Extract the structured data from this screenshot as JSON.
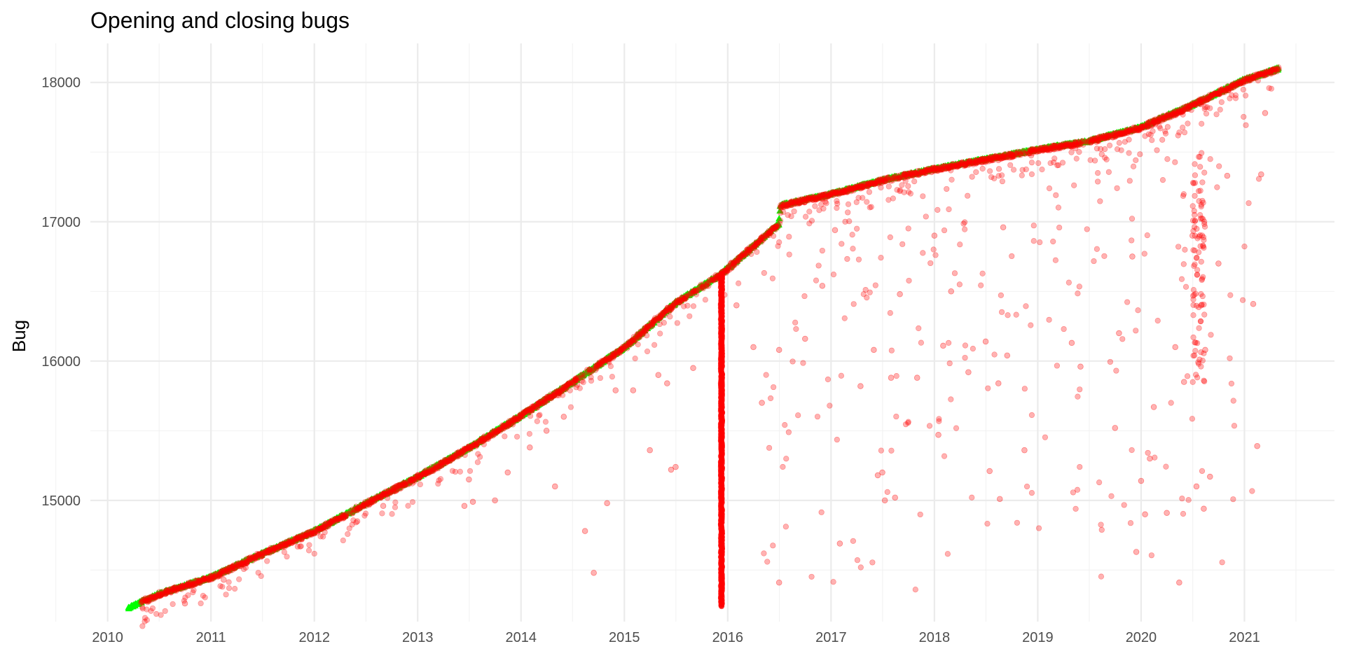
{
  "chart_data": {
    "type": "scatter",
    "title": "Opening and closing bugs",
    "xlabel": "",
    "ylabel": "Bug",
    "x_axis_type": "date",
    "xlim": [
      "2009-11-01",
      "2021-11-15"
    ],
    "ylim": [
      14130,
      18280
    ],
    "x_ticks": [
      "2010",
      "2011",
      "2012",
      "2013",
      "2014",
      "2015",
      "2016",
      "2017",
      "2018",
      "2019",
      "2020",
      "2021"
    ],
    "y_ticks": [
      15000,
      16000,
      17000,
      18000
    ],
    "y_minor_ticks": [
      14500,
      15500,
      16500,
      17500
    ],
    "grid": true,
    "legend": "none",
    "series": [
      {
        "role": "opened",
        "color": "#00ff00",
        "marker": "triangle",
        "trend": [
          [
            "2010-03-15",
            14230
          ],
          [
            "2010-07-01",
            14330
          ],
          [
            "2011-01-01",
            14450
          ],
          [
            "2011-07-01",
            14620
          ],
          [
            "2012-01-01",
            14780
          ],
          [
            "2012-07-01",
            14980
          ],
          [
            "2013-01-01",
            15170
          ],
          [
            "2013-07-01",
            15380
          ],
          [
            "2014-01-01",
            15610
          ],
          [
            "2014-07-01",
            15850
          ],
          [
            "2015-01-01",
            16100
          ],
          [
            "2015-07-01",
            16420
          ],
          [
            "2015-12-10",
            16630
          ],
          [
            "2016-07-01",
            16990
          ],
          [
            "2016-07-05",
            17120
          ],
          [
            "2017-01-01",
            17200
          ],
          [
            "2017-07-01",
            17300
          ],
          [
            "2018-01-01",
            17380
          ],
          [
            "2018-07-01",
            17450
          ],
          [
            "2019-01-01",
            17520
          ],
          [
            "2019-07-01",
            17580
          ],
          [
            "2020-01-01",
            17680
          ],
          [
            "2020-07-01",
            17840
          ],
          [
            "2021-01-01",
            18020
          ],
          [
            "2021-05-01",
            18100
          ]
        ]
      },
      {
        "role": "closed",
        "color": "#ff0000",
        "marker": "circle",
        "opacity": 0.3,
        "trend_start": "2010-05-01",
        "mass_close": {
          "date": "2015-12-10",
          "y_from": 14240,
          "y_to": 16630
        },
        "stragglers": [
          [
            "2010-10-01",
            14260
          ],
          [
            "2011-02-15",
            14430
          ],
          [
            "2012-06-01",
            14850
          ],
          [
            "2012-09-01",
            14960
          ],
          [
            "2013-06-15",
            14960
          ],
          [
            "2013-07-01",
            15150
          ],
          [
            "2013-07-15",
            14990
          ],
          [
            "2013-10-01",
            15000
          ],
          [
            "2013-11-15",
            15200
          ],
          [
            "2014-02-01",
            15380
          ],
          [
            "2014-04-01",
            15500
          ],
          [
            "2014-05-01",
            15100
          ],
          [
            "2014-06-01",
            15600
          ],
          [
            "2014-08-15",
            14780
          ],
          [
            "2014-09-15",
            14480
          ],
          [
            "2014-11-01",
            14980
          ],
          [
            "2014-12-01",
            15790
          ],
          [
            "2015-02-01",
            15790
          ],
          [
            "2015-04-01",
            15360
          ],
          [
            "2015-05-01",
            15900
          ],
          [
            "2015-06-01",
            15840
          ],
          [
            "2015-06-15",
            15220
          ],
          [
            "2015-07-01",
            15240
          ],
          [
            "2015-09-01",
            15950
          ],
          [
            "2016-02-01",
            16400
          ],
          [
            "2016-04-01",
            16100
          ],
          [
            "2016-05-01",
            15700
          ],
          [
            "2016-07-01",
            14410
          ],
          [
            "2016-07-01",
            16080
          ],
          [
            "2016-10-01",
            16160
          ],
          [
            "2016-12-01",
            16540
          ],
          [
            "2017-01-15",
            16940
          ],
          [
            "2017-02-01",
            14690
          ],
          [
            "2017-04-15",
            15820
          ],
          [
            "2017-06-01",
            16080
          ],
          [
            "2017-06-15",
            15180
          ],
          [
            "2017-07-01",
            15200
          ],
          [
            "2017-07-10",
            15000
          ],
          [
            "2017-08-01",
            15880
          ],
          [
            "2017-08-15",
            15020
          ],
          [
            "2017-09-01",
            16480
          ],
          [
            "2017-11-01",
            15880
          ],
          [
            "2018-01-01",
            16900
          ],
          [
            "2018-01-15",
            15470
          ],
          [
            "2018-02-01",
            16110
          ],
          [
            "2018-03-01",
            16500
          ],
          [
            "2018-05-01",
            15920
          ],
          [
            "2018-07-01",
            16140
          ],
          [
            "2018-07-15",
            15210
          ],
          [
            "2018-08-15",
            15840
          ],
          [
            "2018-08-20",
            15010
          ],
          [
            "2018-09-01",
            16960
          ],
          [
            "2018-09-15",
            16040
          ],
          [
            "2018-11-15",
            15360
          ],
          [
            "2019-05-01",
            16130
          ],
          [
            "2019-06-01",
            15960
          ],
          [
            "2019-10-01",
            15520
          ],
          [
            "2019-10-15",
            16200
          ],
          [
            "2019-12-01",
            16750
          ],
          [
            "2019-12-15",
            14630
          ],
          [
            "2020-01-01",
            15140
          ],
          [
            "2020-01-15",
            14900
          ],
          [
            "2020-02-01",
            15300
          ],
          [
            "2020-02-15",
            15670
          ],
          [
            "2020-04-01",
            14910
          ],
          [
            "2020-05-01",
            16100
          ],
          [
            "2020-05-15",
            14410
          ],
          [
            "2020-06-01",
            15850
          ],
          [
            "2020-07-01",
            16900
          ],
          [
            "2020-07-15",
            15100
          ],
          [
            "2020-08-01",
            16400
          ],
          [
            "2020-08-10",
            14940
          ],
          [
            "2020-08-15",
            16080
          ],
          [
            "2020-09-01",
            15170
          ],
          [
            "2020-10-01",
            16700
          ],
          [
            "2020-11-01",
            17330
          ],
          [
            "2021-02-01",
            16410
          ],
          [
            "2021-02-15",
            15390
          ],
          [
            "2021-03-01",
            17340
          ],
          [
            "2021-03-15",
            17780
          ]
        ]
      }
    ]
  }
}
